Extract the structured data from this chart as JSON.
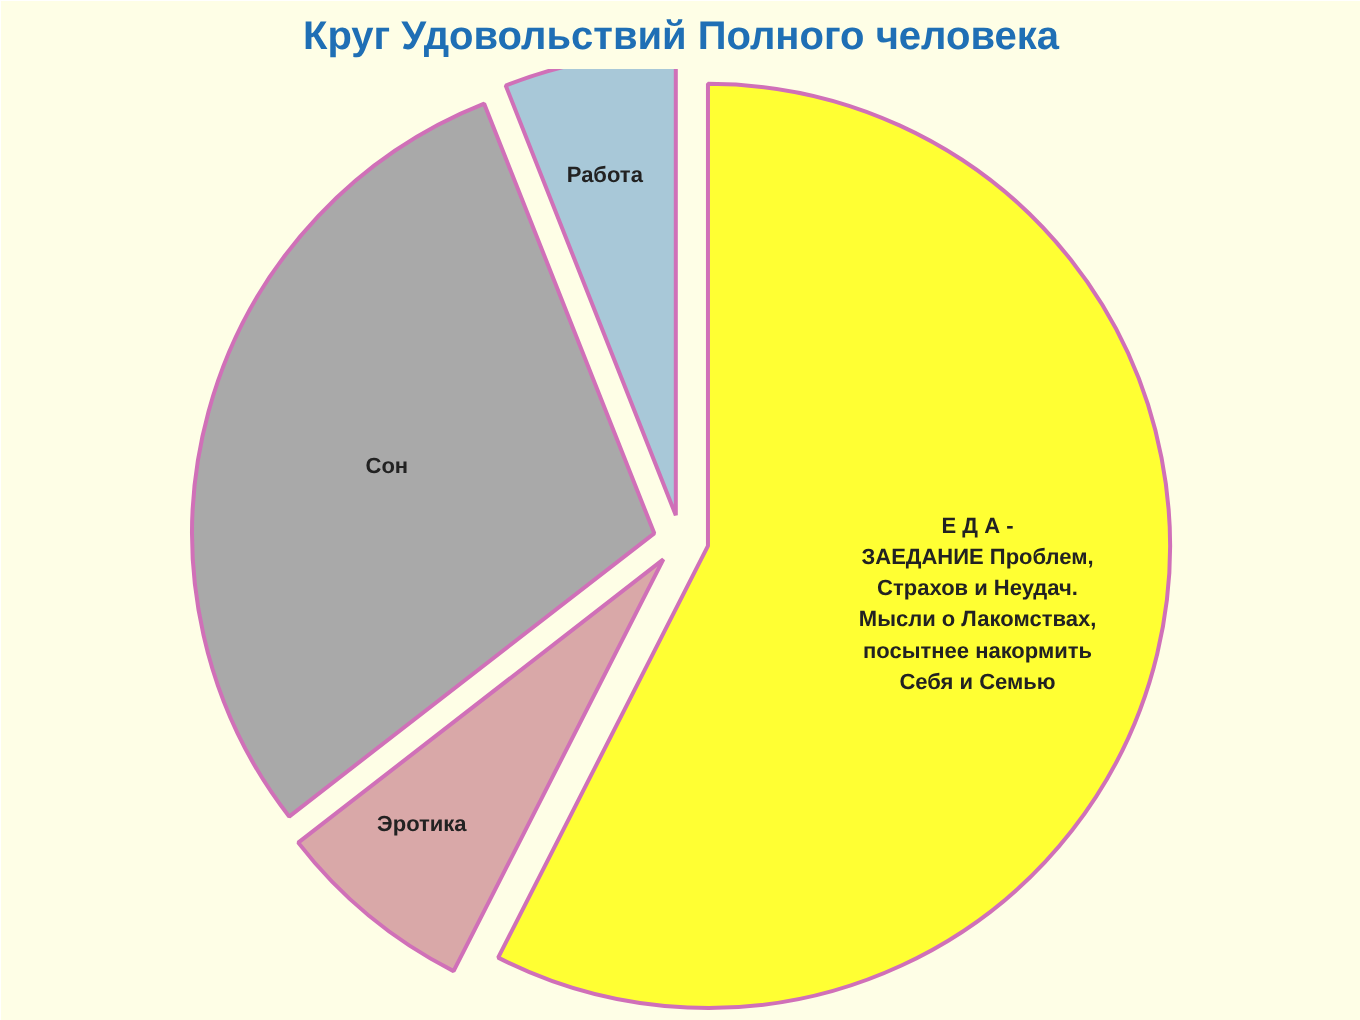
{
  "chart_data": {
    "type": "pie",
    "title": "Круг Удовольствий Полного человека",
    "categories": [
      "Е Д А -\nЗАЕДАНИЕ Проблем,\nСтрахов и Неудач.\nМысли о Лакомствах,\nпосытнее накормить\nСебя и Семью",
      "Эротика",
      "Сон",
      "Работа"
    ],
    "values": [
      57.5,
      7,
      29.5,
      6
    ],
    "colors": [
      "#ffff33",
      "#d9a8a8",
      "#a9a9a9",
      "#a8c8d8"
    ]
  }
}
